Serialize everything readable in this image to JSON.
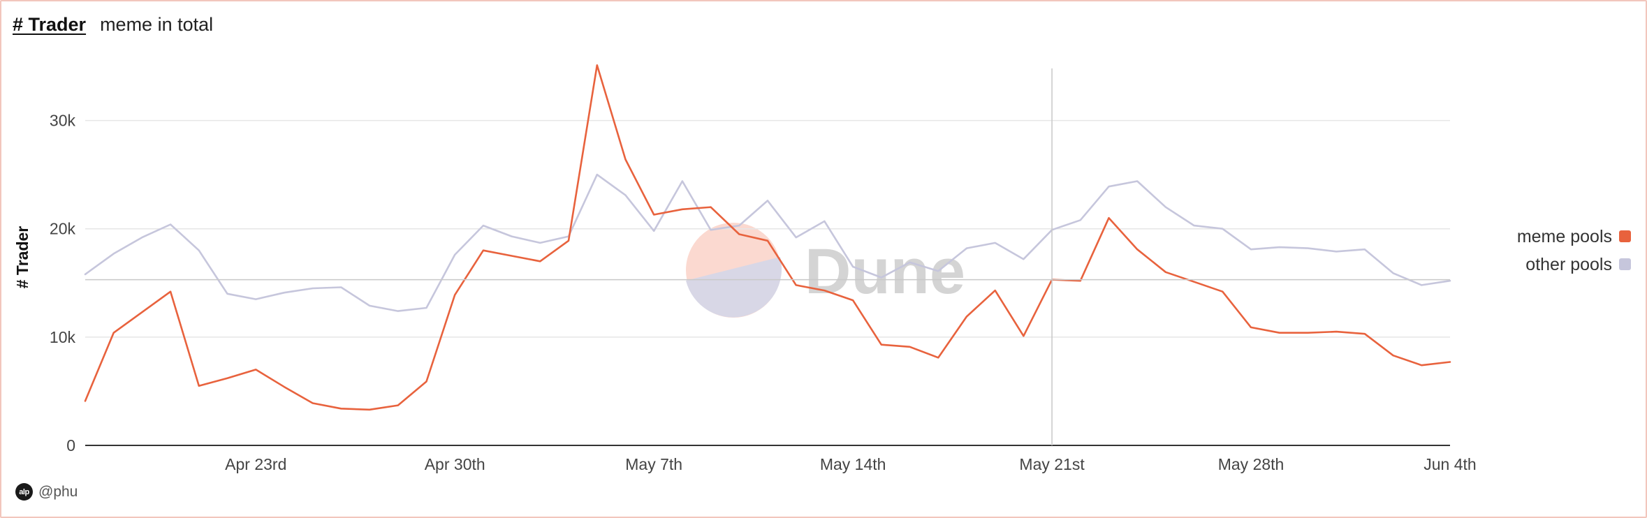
{
  "header": {
    "title": "# Trader",
    "subtitle": "meme in total"
  },
  "footer": {
    "avatar_text": "alp",
    "author": "@phu"
  },
  "watermark": {
    "text": "Dune"
  },
  "colors": {
    "meme_pools": "#e8623d",
    "other_pools": "#c6c6dc",
    "grid": "#e6e6e6",
    "axis": "#333333",
    "crosshair": "#c8c8c8"
  },
  "chart_data": {
    "type": "line",
    "title": "# Trader",
    "subtitle": "meme in total",
    "xlabel": "",
    "ylabel": "# Trader",
    "ylim": [
      0,
      35000
    ],
    "y_ticks": [
      {
        "value": 0,
        "label": "0"
      },
      {
        "value": 10000,
        "label": "10k"
      },
      {
        "value": 20000,
        "label": "20k"
      },
      {
        "value": 30000,
        "label": "30k"
      }
    ],
    "x_start": "2024-04-17",
    "x_end": "2024-06-04",
    "x_ticks": [
      {
        "date": "2024-04-23",
        "label": "Apr 23rd"
      },
      {
        "date": "2024-04-30",
        "label": "Apr 30th"
      },
      {
        "date": "2024-05-07",
        "label": "May 7th"
      },
      {
        "date": "2024-05-14",
        "label": "May 14th"
      },
      {
        "date": "2024-05-21",
        "label": "May 21st"
      },
      {
        "date": "2024-05-28",
        "label": "May 28th"
      },
      {
        "date": "2024-06-04",
        "label": "Jun 4th"
      }
    ],
    "crosshair": {
      "date": "2024-05-21",
      "value": 15300
    },
    "grid": true,
    "legend_position": "right",
    "series": [
      {
        "name": "meme pools",
        "color": "#e8623d",
        "values": [
          4100,
          10400,
          12300,
          14200,
          5500,
          6200,
          7000,
          5400,
          3900,
          3400,
          3300,
          3700,
          5900,
          13900,
          18000,
          17500,
          17000,
          18900,
          35100,
          26400,
          21300,
          21800,
          22000,
          19500,
          18900,
          14800,
          14300,
          13400,
          9300,
          9100,
          8100,
          11900,
          14300,
          10100,
          15300,
          15200,
          21000,
          18100,
          16000,
          15100,
          14200,
          10900,
          10400,
          10400,
          10500,
          10300,
          8300,
          7400,
          7700
        ]
      },
      {
        "name": "other pools",
        "color": "#c6c6dc",
        "values": [
          15800,
          17700,
          19200,
          20400,
          18000,
          14000,
          13500,
          14100,
          14500,
          14600,
          12900,
          12400,
          12700,
          17600,
          20300,
          19300,
          18700,
          19300,
          25000,
          23100,
          19800,
          24400,
          19900,
          20300,
          22600,
          19200,
          20700,
          16500,
          15500,
          16900,
          16100,
          18200,
          18700,
          17200,
          19900,
          20800,
          23900,
          24400,
          22000,
          20300,
          20000,
          18100,
          18300,
          18200,
          17900,
          18100,
          15900,
          14800,
          15200
        ]
      }
    ]
  }
}
